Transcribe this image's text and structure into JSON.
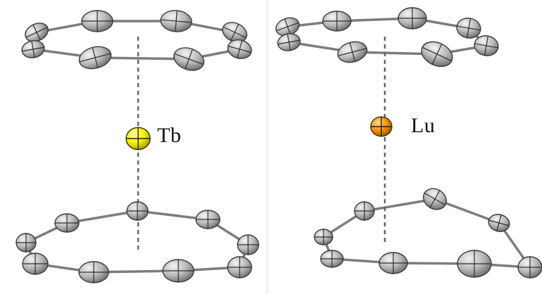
{
  "figure": {
    "panels": [
      {
        "metal_label": "Tb",
        "metal_color": "#f2f000"
      },
      {
        "metal_label": "Lu",
        "metal_color": "#f0900f"
      }
    ],
    "colors": {
      "carbon_atom": "#b9b9b9",
      "bond": "#7d7d7d",
      "axis": "#666666"
    }
  }
}
